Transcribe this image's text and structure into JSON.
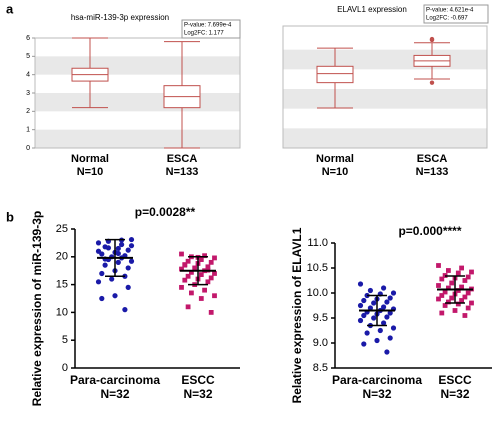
{
  "panel_labels": [
    "a",
    "b"
  ],
  "chart_data": [
    {
      "type": "box",
      "title": "hsa-miR-139-3p expression",
      "pvalue": "P-value: 7.699e-4",
      "log2fc": "Log2FC: 1.177",
      "categories": [
        "Normal",
        "ESCA"
      ],
      "n_labels": [
        "N=10",
        "N=133"
      ],
      "color": "#c0504d",
      "ylim": [
        0,
        6
      ],
      "yticks": [
        0,
        1,
        2,
        3,
        4,
        5,
        6
      ],
      "stats": [
        {
          "min": 2.2,
          "q1": 3.65,
          "median": 4.0,
          "q3": 4.35,
          "max": 6.0,
          "outliers": []
        },
        {
          "min": 0,
          "q1": 2.2,
          "median": 2.8,
          "q3": 3.4,
          "max": 5.8,
          "outliers": []
        }
      ]
    },
    {
      "type": "box",
      "title": "ELAVL1 expression",
      "pvalue": "P-value: 4.621e-4",
      "log2fc": "Log2FC: -0.697",
      "categories": [
        "Normal",
        "ESCA"
      ],
      "n_labels": [
        "N=10",
        "N=133"
      ],
      "color": "#c0504d",
      "ylim": [
        0,
        6.5
      ],
      "stats": [
        {
          "min": 2.2,
          "q1": 3.6,
          "median": 4.1,
          "q3": 4.5,
          "max": 5.5,
          "outliers": []
        },
        {
          "min": 3.8,
          "q1": 4.5,
          "median": 4.8,
          "q3": 5.1,
          "max": 5.8,
          "outliers": [
            6.0,
            5.95,
            3.6
          ]
        }
      ]
    },
    {
      "type": "dot",
      "y_label": "Relative expression of miR-139-3p",
      "annotation": "p=0.0028**",
      "categories": [
        "Para-carcinoma",
        "ESCC"
      ],
      "n_labels": [
        "N=32",
        "N=32"
      ],
      "ylim": [
        0,
        25
      ],
      "yticks": [
        0,
        5,
        10,
        15,
        20,
        25
      ],
      "groups": [
        {
          "color": "#1a1aa8",
          "mean": 19.8,
          "sd": 3.3,
          "values": [
            22.5,
            23.0,
            22.8,
            22.0,
            21.5,
            21.8,
            21.2,
            20.8,
            20.5,
            20.2,
            20.0,
            21.0,
            19.8,
            19.5,
            19.2,
            19.0,
            18.5,
            18.0,
            17.5,
            17.0,
            16.5,
            16.0,
            15.5,
            22.2,
            21.6,
            23.1,
            20.6,
            19.6,
            14.5,
            13.0,
            12.5,
            10.5
          ]
        },
        {
          "color": "#c2186b",
          "mean": 17.5,
          "sd": 2.5,
          "values": [
            20.5,
            20.2,
            20.0,
            19.8,
            19.5,
            19.2,
            19.0,
            18.8,
            18.5,
            18.2,
            18.0,
            17.8,
            17.5,
            17.2,
            17.0,
            16.8,
            16.5,
            16.2,
            16.0,
            15.8,
            15.5,
            15.0,
            14.5,
            14.0,
            13.5,
            13.0,
            12.5,
            11.0,
            10.0,
            19.9,
            18.6,
            17.6
          ]
        }
      ]
    },
    {
      "type": "dot",
      "y_label": "Relative expression of ELAVL1",
      "annotation": "p=0.000****",
      "categories": [
        "Para-carcinoma",
        "ESCC"
      ],
      "n_labels": [
        "N=32",
        "N=32"
      ],
      "ylim": [
        8.5,
        11.0
      ],
      "yticks": [
        8.5,
        {
          "value": 9,
          "label": "9.0"
        },
        9.5,
        {
          "value": 10,
          "label": "10.0"
        },
        10.5,
        {
          "value": 11,
          "label": "11.0"
        }
      ],
      "groups": [
        {
          "color": "#1a1aa8",
          "mean": 9.65,
          "sd": 0.3,
          "values": [
            10.18,
            10.1,
            10.05,
            10.0,
            9.98,
            9.95,
            9.9,
            9.88,
            9.85,
            9.82,
            9.8,
            9.75,
            9.72,
            9.7,
            9.68,
            9.65,
            9.62,
            9.6,
            9.58,
            9.55,
            9.52,
            9.5,
            9.45,
            9.4,
            9.35,
            9.3,
            9.25,
            9.2,
            9.1,
            9.05,
            8.98,
            8.82
          ]
        },
        {
          "color": "#c2186b",
          "mean": 10.07,
          "sd": 0.27,
          "values": [
            10.55,
            10.5,
            10.45,
            10.42,
            10.4,
            10.35,
            10.32,
            10.3,
            10.28,
            10.25,
            10.2,
            10.15,
            10.12,
            10.1,
            10.08,
            10.05,
            10.02,
            10.0,
            9.98,
            9.95,
            9.92,
            9.9,
            9.88,
            9.85,
            9.82,
            9.8,
            9.78,
            9.75,
            9.7,
            9.65,
            9.6,
            9.55
          ]
        }
      ]
    }
  ]
}
